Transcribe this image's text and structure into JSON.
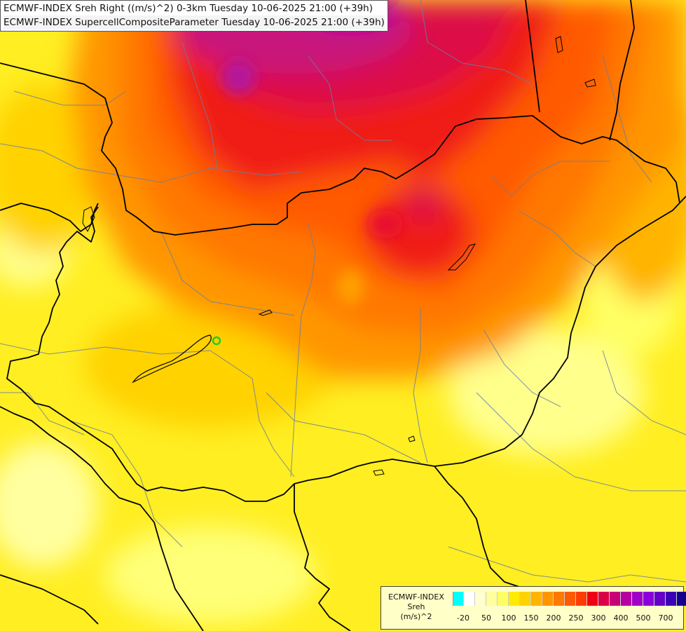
{
  "header": {
    "line1": "ECMWF-INDEX Sreh Right ((m/s)^2) 0-3km Tuesday 10-06-2025 21:00 (+39h)",
    "line2": "ECMWF-INDEX SupercellCompositeParameter Tuesday 10-06-2025 21:00 (+39h)"
  },
  "legend": {
    "title_lines": [
      "ECMWF-INDEX",
      "Sreh",
      "(m/s)^2"
    ],
    "colors": [
      "#00ffff",
      "#ffffff",
      "#ffffd2",
      "#ffffa0",
      "#ffff64",
      "#ffeb00",
      "#ffd200",
      "#ffb400",
      "#ff9600",
      "#ff7800",
      "#ff5a00",
      "#ff3c00",
      "#f00014",
      "#dc0046",
      "#c80078",
      "#b400a0",
      "#a000c8",
      "#8c00dc",
      "#6400c8",
      "#3c00b4",
      "#14008c"
    ],
    "tick_labels": [
      "-20",
      "50",
      "100",
      "150",
      "200",
      "250",
      "300",
      "400",
      "500",
      "700"
    ]
  },
  "map": {
    "field": "Sreh 0-3km storm-relative helicity",
    "marker_color": "#22cc22"
  }
}
